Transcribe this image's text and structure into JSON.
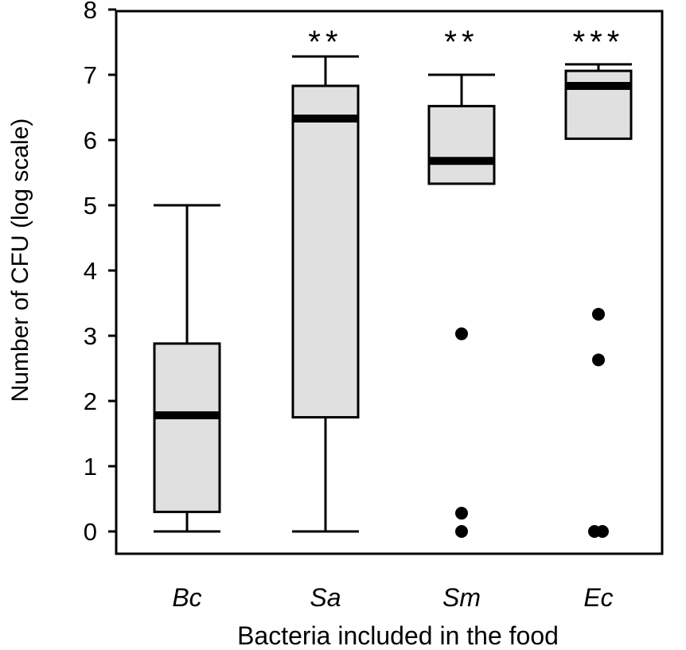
{
  "chart_data": {
    "type": "box",
    "xlabel": "Bacteria included in the food",
    "ylabel": "Number of CFU (log scale)",
    "ylim": [
      0,
      8
    ],
    "yticks": [
      "0",
      "1",
      "2",
      "3",
      "4",
      "5",
      "6",
      "7",
      "8"
    ],
    "categories": [
      "Bc",
      "Sa",
      "Sm",
      "Ec"
    ],
    "box_fill": "#e0e0e0",
    "boxes": [
      {
        "category": "Bc",
        "whisker_low": 0.0,
        "q1": 0.3,
        "median": 1.78,
        "q3": 2.88,
        "whisker_high": 5.0,
        "outliers": [],
        "significance": ""
      },
      {
        "category": "Sa",
        "whisker_low": 0.0,
        "q1": 1.75,
        "median": 6.33,
        "q3": 6.83,
        "whisker_high": 7.28,
        "outliers": [],
        "significance": "**"
      },
      {
        "category": "Sm",
        "whisker_low": 5.33,
        "q1": 5.33,
        "median": 5.68,
        "q3": 6.52,
        "whisker_high": 7.0,
        "outliers": [
          3.03,
          0.28,
          0.0
        ],
        "significance": "**"
      },
      {
        "category": "Ec",
        "whisker_low": 6.02,
        "q1": 6.02,
        "median": 6.83,
        "q3": 7.06,
        "whisker_high": 7.16,
        "outliers": [
          3.33,
          2.63,
          0.0,
          0.0
        ],
        "significance": "***"
      }
    ]
  }
}
